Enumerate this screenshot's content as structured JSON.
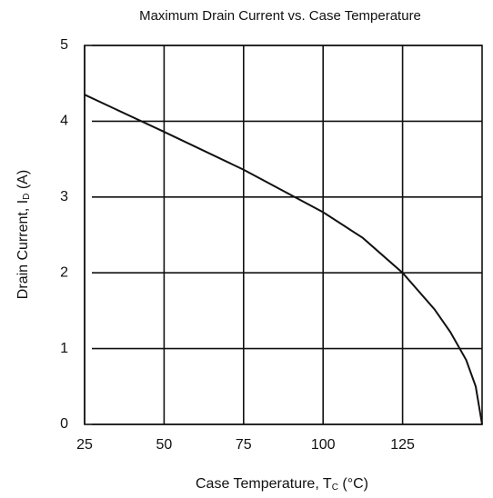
{
  "chart_data": {
    "type": "line",
    "title": "Maximum Drain Current vs. Case Temperature",
    "xlabel": {
      "main": "Case Temperature, T",
      "sub": "C",
      "unit": " (°C)"
    },
    "ylabel": {
      "main": "Drain Current, I",
      "sub": "D",
      "unit": " (A)"
    },
    "x": [
      25,
      50,
      75,
      100,
      112.5,
      125,
      135,
      140,
      145,
      148,
      150
    ],
    "series": [
      {
        "color": "#111111",
        "values": [
          4.35,
          3.86,
          3.36,
          2.8,
          2.46,
          2.0,
          1.52,
          1.22,
          0.85,
          0.5,
          0
        ]
      }
    ],
    "xlim": [
      25,
      150
    ],
    "ylim": [
      0,
      5
    ],
    "xticks": [
      25,
      50,
      75,
      100,
      125
    ],
    "yticks": [
      0,
      1,
      2,
      3,
      4,
      5
    ],
    "grid": true
  }
}
